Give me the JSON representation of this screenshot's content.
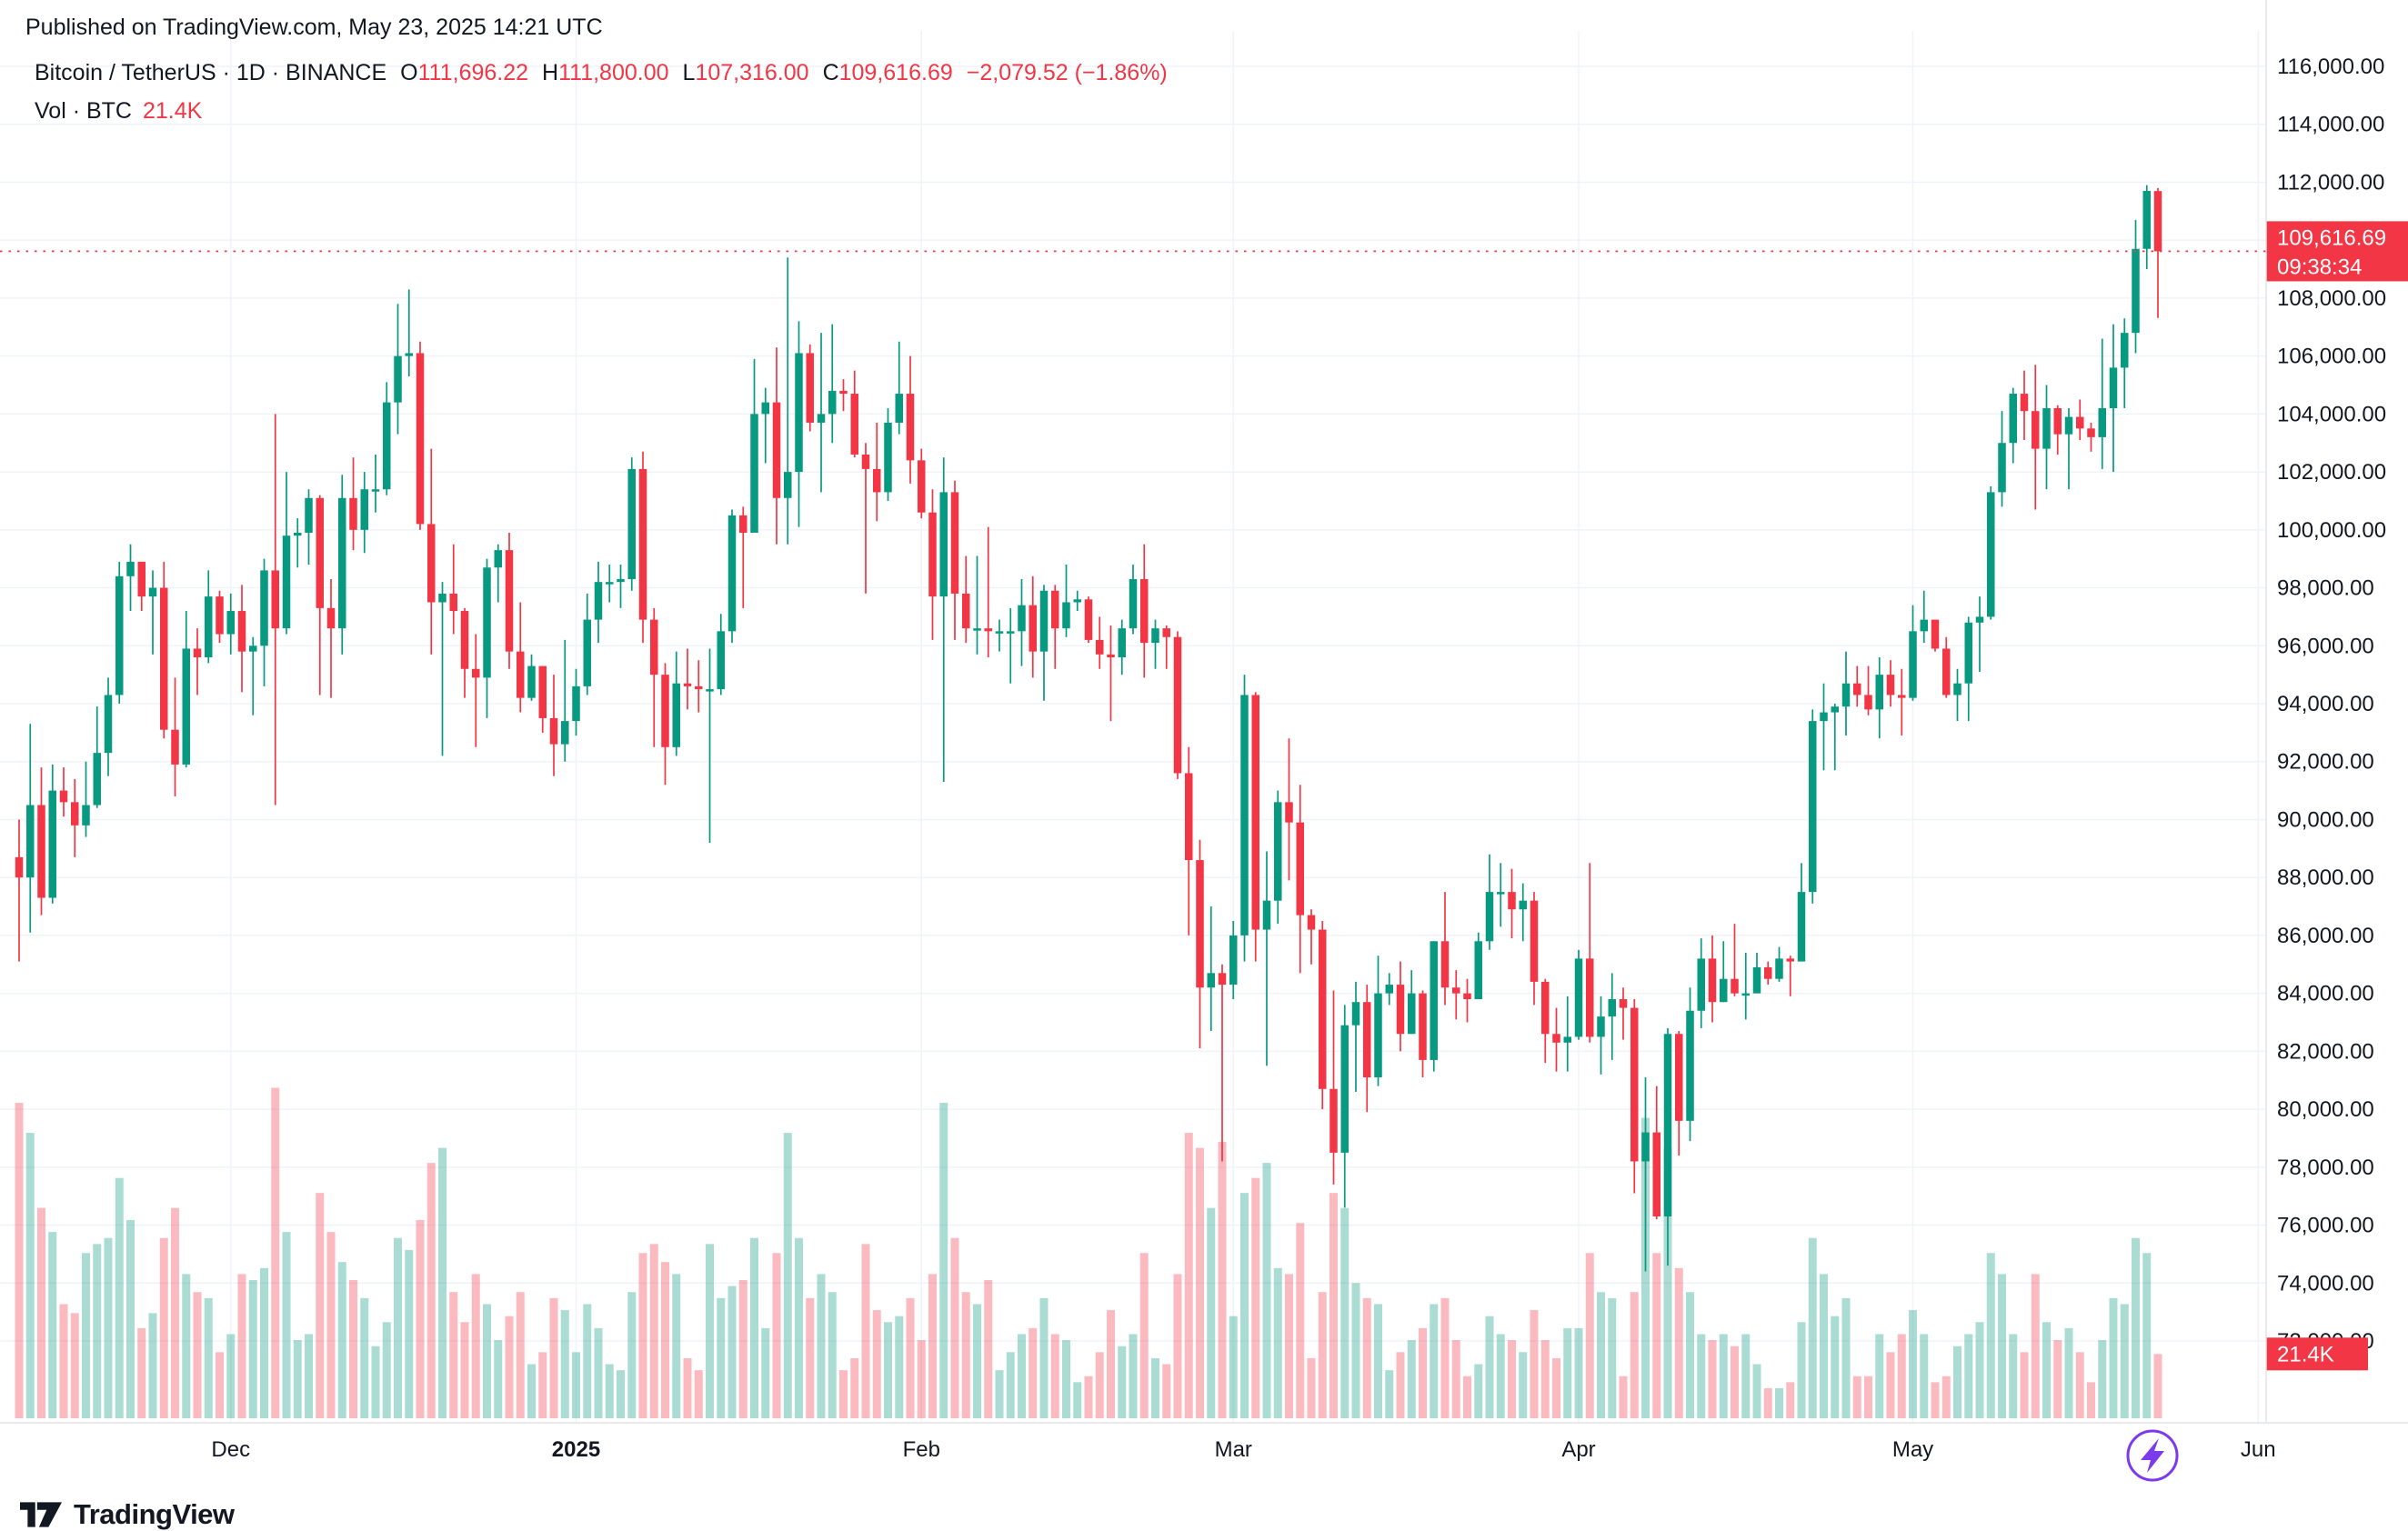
{
  "page": {
    "published_line": "Published on TradingView.com, May 23, 2025 14:21 UTC"
  },
  "legend": {
    "title": "Bitcoin / TetherUS · 1D · BINANCE",
    "ohlc": [
      {
        "label": "O",
        "value": "111,696.22"
      },
      {
        "label": "H",
        "value": "111,800.00"
      },
      {
        "label": "L",
        "value": "107,316.00"
      },
      {
        "label": "C",
        "value": "109,616.69"
      }
    ],
    "change": "−2,079.52 (−1.86%)",
    "vol_label": "Vol · BTC",
    "vol_value": "21.4K"
  },
  "footer": {
    "brand": "TradingView"
  },
  "colors": {
    "up": "#089981",
    "down": "#F23645",
    "grid": "#F0F3FA",
    "axis_border": "#E0E3EB",
    "axis_text": "#131722",
    "badge_text": "#FFFFFF",
    "purple": "#7C3AED"
  },
  "chart_data": {
    "type": "candlestick",
    "title": "Bitcoin / TetherUS · 1D · BINANCE",
    "y_axis": {
      "min": 72000,
      "max": 116000,
      "step": 2000,
      "tick_labels": [
        "116,000.00",
        "114,000.00",
        "112,000.00",
        "110,000.00",
        "108,000.00",
        "106,000.00",
        "104,000.00",
        "102,000.00",
        "100,000.00",
        "98,000.00",
        "96,000.00",
        "94,000.00",
        "92,000.00",
        "90,000.00",
        "88,000.00",
        "86,000.00",
        "84,000.00",
        "82,000.00",
        "80,000.00",
        "78,000.00",
        "76,000.00",
        "74,000.00",
        "72,000.00"
      ]
    },
    "x_ticks": [
      {
        "label": "Dec",
        "index": 19,
        "bold": false
      },
      {
        "label": "2025",
        "index": 50,
        "bold": true
      },
      {
        "label": "Feb",
        "index": 81,
        "bold": false
      },
      {
        "label": "Mar",
        "index": 109,
        "bold": false
      },
      {
        "label": "Apr",
        "index": 140,
        "bold": false
      },
      {
        "label": "May",
        "index": 170,
        "bold": false
      },
      {
        "label": "Jun",
        "index": 201,
        "bold": false
      }
    ],
    "current_price": {
      "value": 109616.69,
      "label": "109,616.69",
      "countdown": "09:38:34"
    },
    "volume_axis_label": "21.4K",
    "candles_format": [
      "open",
      "high",
      "low",
      "close",
      "volume_k_btc"
    ],
    "candles": [
      [
        88700,
        90000,
        85100,
        88000,
        105
      ],
      [
        88000,
        93300,
        86100,
        90500,
        95
      ],
      [
        90500,
        91800,
        86700,
        87300,
        70
      ],
      [
        87300,
        91900,
        87100,
        91000,
        62
      ],
      [
        91000,
        91800,
        90100,
        90600,
        38
      ],
      [
        90600,
        91400,
        88700,
        89800,
        35
      ],
      [
        89800,
        92000,
        89400,
        90500,
        55
      ],
      [
        90500,
        93900,
        90400,
        92300,
        58
      ],
      [
        92300,
        94900,
        91500,
        94300,
        60
      ],
      [
        94300,
        98900,
        94000,
        98400,
        80
      ],
      [
        98400,
        99500,
        97200,
        98900,
        66
      ],
      [
        98900,
        98900,
        97200,
        97700,
        30
      ],
      [
        97700,
        98600,
        95700,
        98000,
        35
      ],
      [
        98000,
        98900,
        92800,
        93100,
        60
      ],
      [
        93100,
        94900,
        90800,
        91900,
        70
      ],
      [
        91900,
        97200,
        91800,
        95900,
        48
      ],
      [
        95900,
        96600,
        94300,
        95600,
        42
      ],
      [
        95600,
        98600,
        95400,
        97700,
        40
      ],
      [
        97700,
        97900,
        96100,
        96400,
        22
      ],
      [
        96400,
        97800,
        95700,
        97200,
        28
      ],
      [
        97200,
        98100,
        94400,
        95800,
        48
      ],
      [
        95800,
        96300,
        93600,
        96000,
        46
      ],
      [
        96000,
        99000,
        94600,
        98600,
        50
      ],
      [
        98600,
        104000,
        90500,
        96600,
        110
      ],
      [
        96600,
        102000,
        96400,
        99800,
        62
      ],
      [
        99800,
        100400,
        98700,
        99900,
        26
      ],
      [
        99900,
        101400,
        98800,
        101100,
        28
      ],
      [
        101100,
        101200,
        94300,
        97300,
        75
      ],
      [
        97300,
        98300,
        94200,
        96600,
        62
      ],
      [
        96600,
        101900,
        95700,
        101100,
        52
      ],
      [
        101100,
        102500,
        99300,
        100000,
        46
      ],
      [
        100000,
        102000,
        99200,
        101400,
        40
      ],
      [
        101400,
        102600,
        100600,
        101400,
        24
      ],
      [
        101400,
        105100,
        101200,
        104400,
        32
      ],
      [
        104400,
        107800,
        103300,
        106000,
        60
      ],
      [
        106000,
        108300,
        105300,
        106100,
        56
      ],
      [
        106100,
        106500,
        100000,
        100200,
        66
      ],
      [
        100200,
        102800,
        95700,
        97500,
        85
      ],
      [
        97500,
        98200,
        92200,
        97800,
        90
      ],
      [
        97800,
        99500,
        96400,
        97200,
        42
      ],
      [
        97200,
        97300,
        94200,
        95200,
        32
      ],
      [
        95200,
        96400,
        92500,
        94900,
        48
      ],
      [
        94900,
        99000,
        93500,
        98700,
        38
      ],
      [
        98700,
        99500,
        97500,
        99300,
        26
      ],
      [
        99300,
        99900,
        95200,
        95800,
        34
      ],
      [
        95800,
        97500,
        93700,
        94200,
        42
      ],
      [
        94200,
        95700,
        94100,
        95300,
        18
      ],
      [
        95300,
        95300,
        93000,
        93500,
        22
      ],
      [
        93500,
        95000,
        91500,
        92600,
        40
      ],
      [
        92600,
        96200,
        92000,
        93400,
        36
      ],
      [
        93400,
        95200,
        92900,
        94600,
        22
      ],
      [
        94600,
        97800,
        94300,
        96900,
        38
      ],
      [
        96900,
        98900,
        96100,
        98200,
        30
      ],
      [
        98200,
        98800,
        97500,
        98200,
        18
      ],
      [
        98200,
        98800,
        97300,
        98300,
        16
      ],
      [
        98300,
        102500,
        97900,
        102100,
        42
      ],
      [
        102100,
        102700,
        96100,
        96900,
        55
      ],
      [
        96900,
        97300,
        92500,
        95000,
        58
      ],
      [
        95000,
        95400,
        91200,
        92500,
        52
      ],
      [
        92500,
        95800,
        92200,
        94700,
        48
      ],
      [
        94700,
        95900,
        93800,
        94600,
        20
      ],
      [
        94600,
        95500,
        93700,
        94500,
        16
      ],
      [
        94500,
        95900,
        89200,
        94500,
        58
      ],
      [
        94500,
        97100,
        94300,
        96500,
        40
      ],
      [
        96500,
        100700,
        96100,
        100500,
        44
      ],
      [
        100500,
        100800,
        97300,
        99900,
        46
      ],
      [
        99900,
        105900,
        99900,
        104000,
        60
      ],
      [
        104000,
        104900,
        102300,
        104400,
        30
      ],
      [
        104400,
        106300,
        99500,
        101100,
        55
      ],
      [
        101100,
        109400,
        99500,
        102000,
        95
      ],
      [
        102000,
        107200,
        100100,
        106100,
        60
      ],
      [
        106100,
        106400,
        103400,
        103700,
        40
      ],
      [
        103700,
        106800,
        101300,
        104000,
        48
      ],
      [
        104000,
        107100,
        103000,
        104800,
        42
      ],
      [
        104800,
        105200,
        104100,
        104700,
        16
      ],
      [
        104700,
        105500,
        102500,
        102600,
        20
      ],
      [
        102600,
        103000,
        97800,
        102100,
        58
      ],
      [
        102100,
        103700,
        100300,
        101300,
        36
      ],
      [
        101300,
        104200,
        101000,
        103700,
        32
      ],
      [
        103700,
        106500,
        103300,
        104700,
        34
      ],
      [
        104700,
        106000,
        101600,
        102400,
        40
      ],
      [
        102400,
        102800,
        100400,
        100600,
        26
      ],
      [
        100600,
        101400,
        96200,
        97700,
        48
      ],
      [
        97700,
        102500,
        91300,
        101300,
        105
      ],
      [
        101300,
        101700,
        96200,
        97800,
        60
      ],
      [
        97800,
        99100,
        96100,
        96600,
        42
      ],
      [
        96600,
        99100,
        95700,
        96600,
        38
      ],
      [
        96600,
        100100,
        95600,
        96500,
        46
      ],
      [
        96500,
        96900,
        95800,
        96500,
        16
      ],
      [
        96500,
        97300,
        94700,
        96500,
        22
      ],
      [
        96500,
        98300,
        95300,
        97400,
        28
      ],
      [
        97400,
        98400,
        94900,
        95800,
        30
      ],
      [
        95800,
        98100,
        94100,
        97900,
        40
      ],
      [
        97900,
        98100,
        95200,
        96600,
        28
      ],
      [
        96600,
        98800,
        96300,
        97500,
        26
      ],
      [
        97500,
        97900,
        97200,
        97600,
        12
      ],
      [
        97600,
        97700,
        96100,
        96200,
        14
      ],
      [
        96200,
        97000,
        95200,
        95700,
        22
      ],
      [
        95700,
        96700,
        93400,
        95600,
        36
      ],
      [
        95600,
        96900,
        95000,
        96600,
        24
      ],
      [
        96600,
        98800,
        96400,
        98300,
        28
      ],
      [
        98300,
        99500,
        94900,
        96100,
        55
      ],
      [
        96100,
        96900,
        95200,
        96600,
        20
      ],
      [
        96600,
        96700,
        95200,
        96300,
        18
      ],
      [
        96300,
        96500,
        91400,
        91600,
        48
      ],
      [
        91600,
        92500,
        86000,
        88600,
        95
      ],
      [
        88600,
        89300,
        82100,
        84200,
        90
      ],
      [
        84200,
        87000,
        82700,
        84700,
        70
      ],
      [
        84700,
        85000,
        78200,
        84300,
        92
      ],
      [
        84300,
        86500,
        83800,
        86000,
        34
      ],
      [
        86000,
        95000,
        85100,
        94300,
        75
      ],
      [
        94300,
        94400,
        85100,
        86200,
        80
      ],
      [
        86200,
        88900,
        81500,
        87200,
        85
      ],
      [
        87200,
        91000,
        86400,
        90600,
        50
      ],
      [
        90600,
        92800,
        87900,
        89900,
        48
      ],
      [
        89900,
        91200,
        84700,
        86700,
        65
      ],
      [
        86700,
        86900,
        85000,
        86200,
        20
      ],
      [
        86200,
        86500,
        80000,
        80700,
        42
      ],
      [
        80700,
        84100,
        77400,
        78500,
        75
      ],
      [
        78500,
        83600,
        76600,
        82900,
        70
      ],
      [
        82900,
        84400,
        80600,
        83700,
        45
      ],
      [
        83700,
        84300,
        79900,
        81100,
        40
      ],
      [
        81100,
        85300,
        80800,
        84000,
        38
      ],
      [
        84000,
        84700,
        83600,
        84300,
        16
      ],
      [
        84300,
        85100,
        82000,
        82600,
        22
      ],
      [
        82600,
        84800,
        82600,
        84000,
        26
      ],
      [
        84000,
        84100,
        81100,
        81700,
        30
      ],
      [
        81700,
        85800,
        81300,
        85800,
        38
      ],
      [
        85800,
        87500,
        83600,
        84200,
        40
      ],
      [
        84200,
        84800,
        83100,
        84000,
        26
      ],
      [
        84000,
        84500,
        83000,
        83800,
        14
      ],
      [
        83800,
        86100,
        83800,
        85800,
        18
      ],
      [
        85800,
        88800,
        85500,
        87500,
        34
      ],
      [
        87500,
        88500,
        86300,
        87500,
        28
      ],
      [
        87500,
        88300,
        85900,
        86900,
        26
      ],
      [
        86900,
        87800,
        85800,
        87200,
        22
      ],
      [
        87200,
        87500,
        83600,
        84400,
        36
      ],
      [
        84400,
        84500,
        81600,
        82600,
        26
      ],
      [
        82600,
        83500,
        81300,
        82300,
        20
      ],
      [
        82300,
        83900,
        81300,
        82500,
        30
      ],
      [
        82500,
        85500,
        82400,
        85200,
        30
      ],
      [
        85200,
        88500,
        82300,
        82500,
        55
      ],
      [
        82500,
        83900,
        81200,
        83200,
        42
      ],
      [
        83200,
        84700,
        81700,
        83800,
        40
      ],
      [
        83800,
        84200,
        82400,
        83500,
        14
      ],
      [
        83500,
        83800,
        77100,
        78200,
        42
      ],
      [
        78200,
        81100,
        74400,
        79200,
        100
      ],
      [
        79200,
        80800,
        76200,
        76300,
        55
      ],
      [
        76300,
        82800,
        74600,
        82600,
        90
      ],
      [
        82600,
        82700,
        78400,
        79600,
        50
      ],
      [
        79600,
        84200,
        78900,
        83400,
        42
      ],
      [
        83400,
        85900,
        82800,
        85200,
        28
      ],
      [
        85200,
        86000,
        83000,
        83700,
        26
      ],
      [
        83700,
        85800,
        83700,
        84500,
        28
      ],
      [
        84500,
        86400,
        83900,
        84000,
        24
      ],
      [
        84000,
        85400,
        83100,
        84000,
        28
      ],
      [
        84000,
        85400,
        84000,
        84900,
        18
      ],
      [
        84900,
        85100,
        84300,
        84500,
        10
      ],
      [
        84500,
        85600,
        84400,
        85200,
        10
      ],
      [
        85200,
        85300,
        83900,
        85100,
        12
      ],
      [
        85100,
        88500,
        85100,
        87500,
        32
      ],
      [
        87500,
        93800,
        87100,
        93400,
        60
      ],
      [
        93400,
        94700,
        91700,
        93700,
        48
      ],
      [
        93700,
        94000,
        91700,
        93900,
        34
      ],
      [
        93900,
        95800,
        92900,
        94700,
        40
      ],
      [
        94700,
        95300,
        93900,
        94300,
        14
      ],
      [
        94300,
        95300,
        93600,
        93800,
        14
      ],
      [
        93800,
        95600,
        92800,
        95000,
        28
      ],
      [
        95000,
        95500,
        93900,
        94300,
        22
      ],
      [
        94300,
        95200,
        92900,
        94200,
        28
      ],
      [
        94200,
        97400,
        94100,
        96500,
        36
      ],
      [
        96500,
        97900,
        96100,
        96900,
        28
      ],
      [
        96900,
        96900,
        95800,
        95900,
        12
      ],
      [
        95900,
        96300,
        94200,
        94300,
        14
      ],
      [
        94300,
        95200,
        93400,
        94700,
        24
      ],
      [
        94700,
        97000,
        93400,
        96800,
        28
      ],
      [
        96800,
        97700,
        95100,
        97000,
        32
      ],
      [
        97000,
        101500,
        96900,
        101300,
        55
      ],
      [
        101300,
        104100,
        100800,
        103000,
        48
      ],
      [
        103000,
        104900,
        102300,
        104700,
        28
      ],
      [
        104700,
        105500,
        103100,
        104100,
        22
      ],
      [
        104100,
        105700,
        100700,
        102800,
        48
      ],
      [
        102800,
        105000,
        101400,
        104200,
        32
      ],
      [
        104200,
        104300,
        102600,
        103300,
        26
      ],
      [
        103300,
        104200,
        101400,
        103900,
        30
      ],
      [
        103900,
        104500,
        103100,
        103500,
        22
      ],
      [
        103500,
        103700,
        102700,
        103200,
        12
      ],
      [
        103200,
        106600,
        102100,
        104200,
        26
      ],
      [
        104200,
        107100,
        102000,
        105600,
        40
      ],
      [
        105600,
        107300,
        104200,
        106800,
        38
      ],
      [
        106800,
        110700,
        106100,
        109700,
        60
      ],
      [
        109700,
        111900,
        109000,
        111700,
        55
      ],
      [
        111696.22,
        111800,
        107316,
        109616.69,
        21.4
      ]
    ]
  }
}
